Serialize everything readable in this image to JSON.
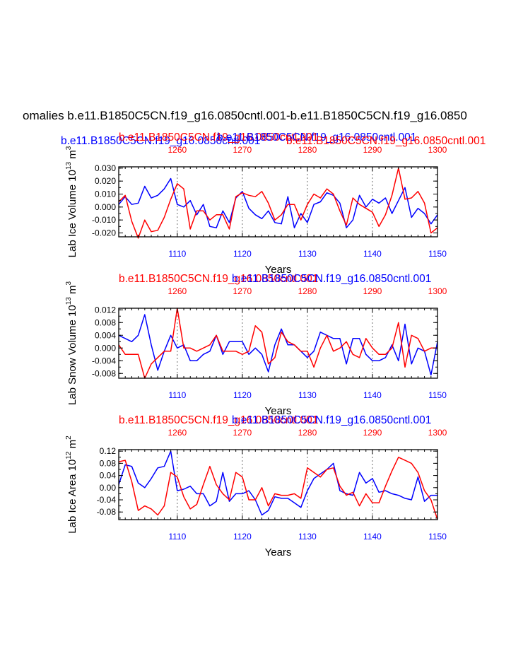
{
  "page_title": "omalies b.e11.B1850C5CN.f19_g16.0850cntl.001-b.e11.B1850C5CN.f19_g16.0850",
  "colors": {
    "blue": "#0000ff",
    "red": "#ff0000",
    "black": "#000000",
    "grid": "#888888"
  },
  "chart_data": [
    {
      "type": "line",
      "title_blue": "b.e11.B1850C5CN.f19_g16.0850cntl.001",
      "title_red": "b.e11.B1850C5CN.f19_g16.0850cntl.001",
      "title_blue_over": "b.e11.B1850C5CN.f19_g16.0850cntl.001",
      "title_red_over": "b.e11.B1850C5CN.f19_g16.0850cntl.001",
      "ylabel": "Lab Ice Volume 10",
      "ylabel_exp": "13",
      "ylabel_unit": " m",
      "ylabel_unit_exp": "3",
      "xlabel": "Years",
      "ylim": [
        -0.023,
        0.031
      ],
      "xlim_bottom": [
        1101,
        1150
      ],
      "xlim_top": [
        1251,
        1300
      ],
      "yticks": [
        "0.030",
        "0.020",
        "0.010",
        "0.000",
        "-0.010",
        "-0.020"
      ],
      "ytick_values": [
        0.03,
        0.02,
        0.01,
        0.0,
        -0.01,
        -0.02
      ],
      "xticks_bottom": [
        "1110",
        "1120",
        "1130",
        "1140",
        "1150"
      ],
      "xtick_bottom_values": [
        1110,
        1120,
        1130,
        1140,
        1150
      ],
      "xticks_top": [
        "1260",
        "1270",
        "1280",
        "1290",
        "1300"
      ],
      "xtick_top_values": [
        1260,
        1270,
        1280,
        1290,
        1300
      ],
      "series": [
        {
          "name": "blue",
          "x_start": 1101,
          "values": [
            0.002,
            0.008,
            0.002,
            0.003,
            0.016,
            0.007,
            0.009,
            0.014,
            0.022,
            0.002,
            0.0,
            0.005,
            -0.006,
            0.002,
            -0.015,
            -0.016,
            -0.003,
            -0.012,
            0.007,
            0.012,
            -0.001,
            -0.006,
            -0.009,
            -0.003,
            -0.012,
            -0.013,
            0.008,
            -0.016,
            -0.005,
            -0.012,
            0.002,
            0.004,
            0.011,
            0.009,
            0.003,
            -0.016,
            -0.01,
            0.009,
            0.0,
            0.006,
            0.003,
            0.007,
            -0.005,
            0.005,
            0.015,
            -0.008,
            -0.001,
            -0.005,
            -0.013,
            -0.006
          ]
        },
        {
          "name": "red",
          "x_start": 1101,
          "values": [
            0.004,
            0.009,
            -0.011,
            -0.024,
            -0.01,
            -0.019,
            -0.018,
            -0.008,
            0.006,
            0.018,
            0.014,
            -0.017,
            -0.003,
            -0.003,
            -0.01,
            -0.006,
            -0.006,
            -0.017,
            0.008,
            0.011,
            0.009,
            0.008,
            0.012,
            0.003,
            -0.01,
            -0.006,
            0.002,
            0.002,
            -0.01,
            0.002,
            0.01,
            0.007,
            0.014,
            0.01,
            -0.003,
            -0.014,
            0.007,
            0.002,
            -0.001,
            -0.004,
            -0.015,
            -0.006,
            0.009,
            0.03,
            0.006,
            0.007,
            0.012,
            0.003,
            -0.02,
            -0.016
          ]
        }
      ]
    },
    {
      "type": "line",
      "title_blue": "b.e11.B1850C5CN.f19_g16.0850cntl.001",
      "title_red": "b.e11.B1850C5CN.f19_g16.0850cntl.001",
      "ylabel": "Lab Snow Volume 10",
      "ylabel_exp": "13",
      "ylabel_unit": " m",
      "ylabel_unit_exp": "3",
      "xlabel": "Years",
      "ylim": [
        -0.0095,
        0.0125
      ],
      "xlim_bottom": [
        1101,
        1150
      ],
      "xlim_top": [
        1251,
        1300
      ],
      "yticks": [
        "0.012",
        "0.008",
        "0.004",
        "0.000",
        "-0.004",
        "-0.008"
      ],
      "ytick_values": [
        0.012,
        0.008,
        0.004,
        0.0,
        -0.004,
        -0.008
      ],
      "xticks_bottom": [
        "1110",
        "1120",
        "1130",
        "1140",
        "1150"
      ],
      "xtick_bottom_values": [
        1110,
        1120,
        1130,
        1140,
        1150
      ],
      "xticks_top": [
        "1260",
        "1270",
        "1280",
        "1290",
        "1300"
      ],
      "xtick_top_values": [
        1260,
        1270,
        1280,
        1290,
        1300
      ],
      "series": [
        {
          "name": "blue",
          "x_start": 1101,
          "values": [
            0.004,
            0.003,
            0.002,
            0.004,
            0.0105,
            0.001,
            -0.007,
            -0.001,
            0.004,
            0.0,
            0.001,
            -0.004,
            -0.004,
            -0.002,
            -0.001,
            0.004,
            -0.002,
            0.002,
            0.002,
            0.002,
            -0.002,
            0.0,
            -0.002,
            -0.0075,
            0.001,
            0.006,
            0.001,
            0.001,
            -0.001,
            -0.003,
            -0.001,
            0.005,
            0.004,
            0.003,
            0.003,
            -0.005,
            0.003,
            0.003,
            -0.002,
            -0.004,
            -0.004,
            -0.003,
            0.001,
            -0.004,
            0.0075,
            -0.005,
            0.0,
            -0.001,
            -0.0085,
            0.002
          ]
        },
        {
          "name": "red",
          "x_start": 1101,
          "values": [
            0.001,
            -0.002,
            -0.002,
            -0.002,
            -0.0095,
            -0.005,
            -0.003,
            -0.001,
            -0.001,
            0.0125,
            0.0,
            0.0,
            -0.001,
            0.0,
            0.001,
            0.004,
            -0.001,
            -0.001,
            -0.001,
            -0.002,
            -0.001,
            0.007,
            0.005,
            -0.005,
            -0.003,
            0.005,
            0.002,
            0.001,
            -0.001,
            -0.001,
            -0.006,
            0.0,
            0.004,
            -0.001,
            0.0,
            0.002,
            -0.002,
            -0.003,
            0.003,
            0.0,
            -0.002,
            -0.002,
            0.0,
            0.008,
            -0.006,
            0.004,
            0.003,
            -0.001,
            0.0,
            0.0
          ]
        }
      ]
    },
    {
      "type": "line",
      "title_blue": "b.e11.B1850C5CN.f19_g16.0850cntl.001",
      "title_red": "b.e11.B1850C5CN.f19_g16.0850cntl.001",
      "ylabel": "Lab Ice Area 10",
      "ylabel_exp": "12",
      "ylabel_unit": " m",
      "ylabel_unit_exp": "2",
      "xlabel": "Years",
      "ylim": [
        -0.105,
        0.125
      ],
      "xlim_bottom": [
        1101,
        1150
      ],
      "xlim_top": [
        1251,
        1300
      ],
      "yticks": [
        "0.12",
        "0.08",
        "0.04",
        "0.00",
        "-0.04",
        "-0.08"
      ],
      "ytick_values": [
        0.12,
        0.08,
        0.04,
        0.0,
        -0.04,
        -0.08
      ],
      "xticks_bottom": [
        "1110",
        "1120",
        "1130",
        "1140",
        "1150"
      ],
      "xtick_bottom_values": [
        1110,
        1120,
        1130,
        1140,
        1150
      ],
      "xticks_top": [
        "1260",
        "1270",
        "1280",
        "1290",
        "1300"
      ],
      "xtick_top_values": [
        1260,
        1270,
        1280,
        1290,
        1300
      ],
      "series": [
        {
          "name": "blue",
          "x_start": 1101,
          "values": [
            0.01,
            0.075,
            0.07,
            0.015,
            0.0,
            0.03,
            0.065,
            0.07,
            0.12,
            -0.01,
            -0.005,
            0.005,
            -0.02,
            -0.02,
            -0.06,
            -0.045,
            0.05,
            -0.045,
            -0.02,
            -0.02,
            -0.01,
            -0.04,
            -0.09,
            -0.075,
            -0.03,
            -0.035,
            -0.035,
            -0.05,
            -0.065,
            -0.01,
            0.03,
            0.045,
            0.06,
            0.08,
            -0.01,
            -0.02,
            -0.025,
            0.05,
            0.015,
            0.03,
            -0.015,
            -0.01,
            -0.02,
            -0.025,
            -0.035,
            -0.04,
            0.035,
            -0.045,
            -0.025,
            -0.025
          ]
        },
        {
          "name": "red",
          "x_start": 1101,
          "values": [
            0.085,
            0.09,
            0.02,
            -0.075,
            -0.06,
            -0.07,
            -0.09,
            -0.06,
            0.05,
            0.035,
            -0.03,
            -0.07,
            -0.055,
            0.01,
            0.07,
            0.01,
            -0.02,
            -0.04,
            0.05,
            0.035,
            -0.04,
            -0.04,
            0.0,
            -0.06,
            -0.02,
            -0.025,
            -0.025,
            -0.02,
            -0.035,
            0.065,
            0.05,
            0.035,
            0.06,
            0.065,
            0.005,
            -0.025,
            -0.015,
            -0.06,
            -0.02,
            -0.05,
            -0.05,
            0.005,
            0.055,
            0.1,
            0.09,
            0.08,
            0.05,
            -0.01,
            -0.04,
            -0.105
          ]
        }
      ]
    }
  ]
}
